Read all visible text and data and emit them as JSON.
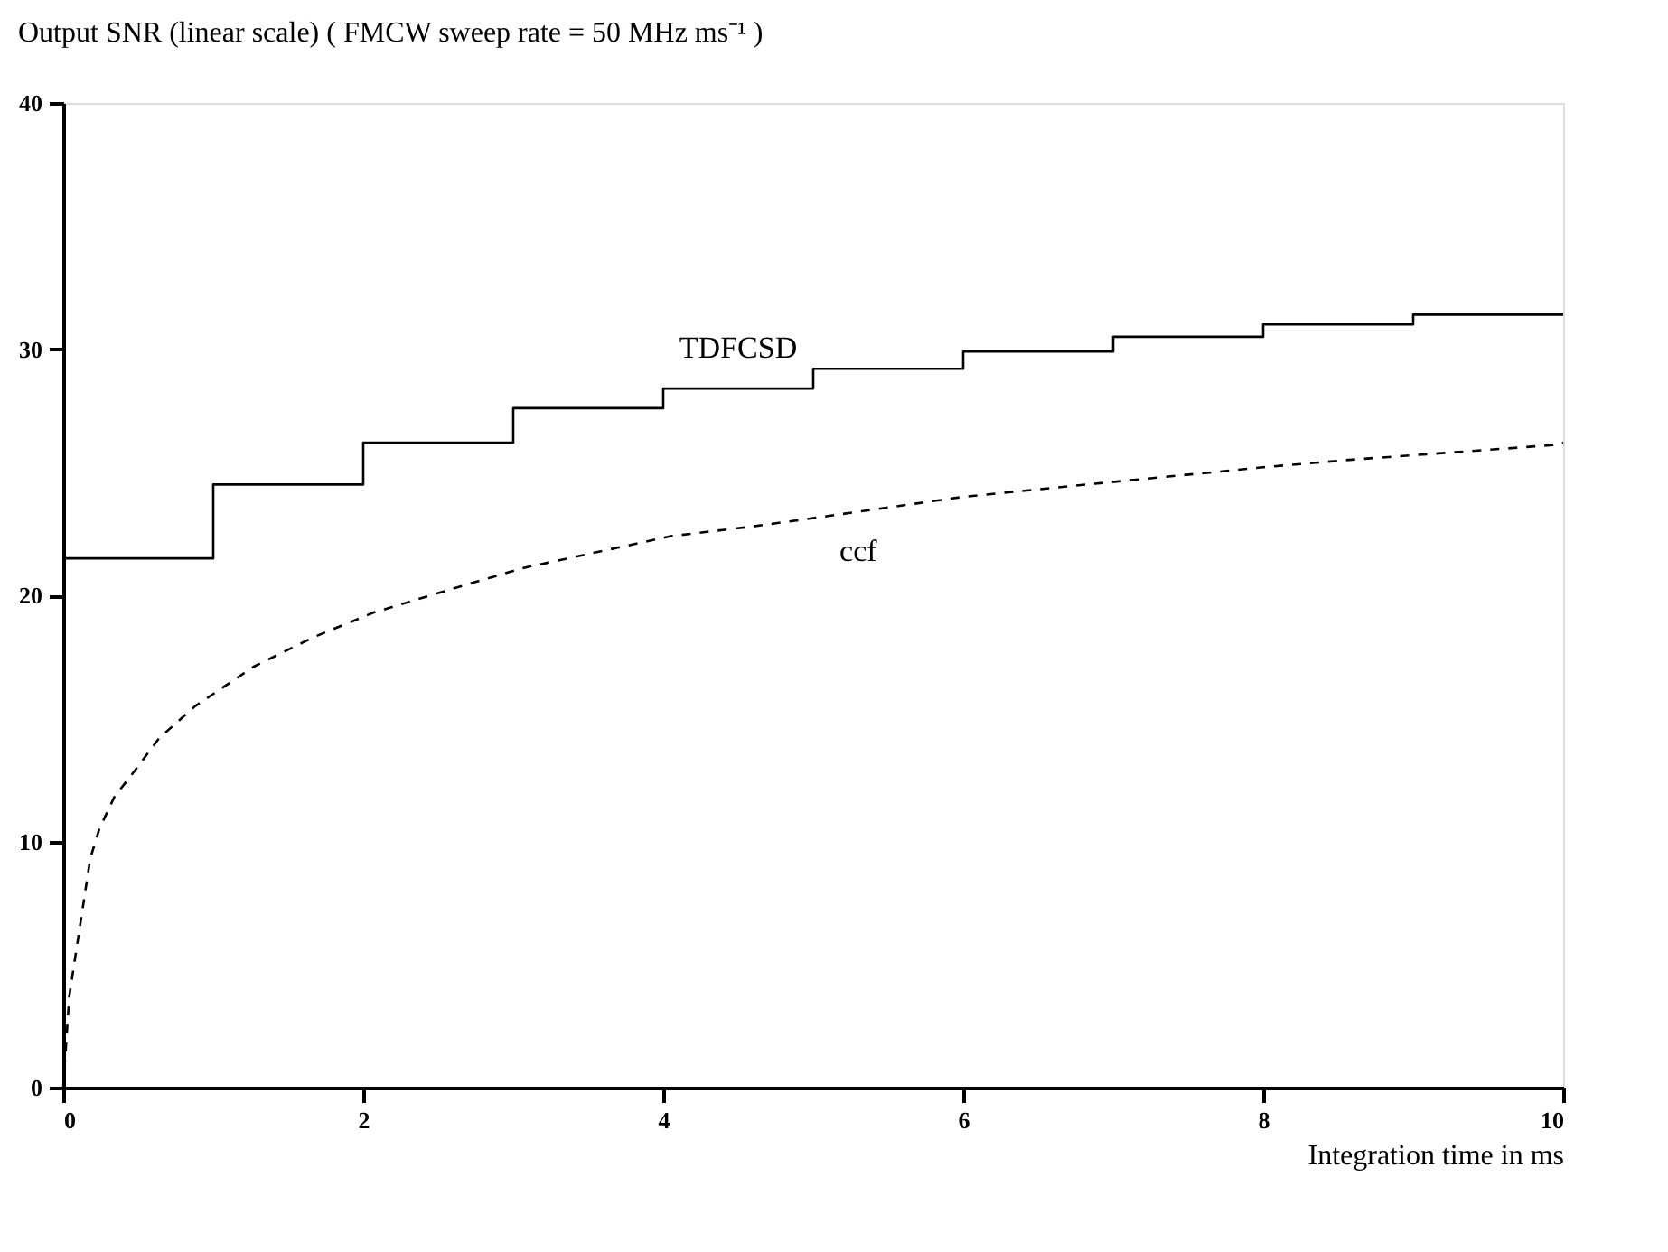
{
  "chart_data": {
    "type": "line",
    "title": "Output SNR (linear scale)   ( FMCW sweep rate = 50 MHz ms⁻¹ )",
    "xlabel": "Integration time  in  ms",
    "xlim": [
      0,
      10
    ],
    "ylim": [
      0,
      40
    ],
    "xticks": [
      0,
      2,
      4,
      6,
      8,
      10
    ],
    "yticks": [
      0,
      10,
      20,
      30,
      40
    ],
    "grid": false,
    "series": [
      {
        "name": "TDFCSD",
        "type": "step",
        "color": "#000000",
        "line_style": "solid",
        "x": [
          0,
          1,
          2,
          3,
          4,
          5,
          6,
          7,
          8,
          9,
          10
        ],
        "values": [
          21.5,
          24.5,
          26.2,
          27.6,
          28.4,
          29.2,
          29.9,
          30.5,
          31.0,
          31.4,
          31.4
        ]
      },
      {
        "name": "ccf",
        "color": "#000000",
        "line_style": "dashed",
        "x": [
          0,
          0.04,
          0.1,
          0.18,
          0.24,
          0.34,
          0.48,
          0.64,
          0.88,
          1.27,
          1.67,
          2.07,
          2.67,
          3.06,
          4.05,
          4.6,
          4.96,
          6,
          6.99,
          8,
          8.57,
          9.93,
          10
        ],
        "values": [
          0,
          3.7,
          6.1,
          9.3,
          10.5,
          11.8,
          12.9,
          14.2,
          15.5,
          17.1,
          18.3,
          19.3,
          20.4,
          21.1,
          22.4,
          22.8,
          23.1,
          24.0,
          24.6,
          25.2,
          25.5,
          26.1,
          26.2
        ]
      }
    ]
  }
}
